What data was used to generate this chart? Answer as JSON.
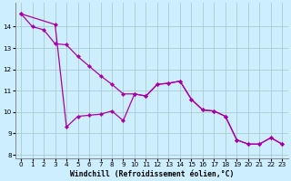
{
  "xlabel": "Windchill (Refroidissement éolien,°C)",
  "background_color": "#cceeff",
  "grid_color": "#aacccc",
  "line_color": "#aa00aa",
  "xlim_min": -0.5,
  "xlim_max": 23.5,
  "ylim_min": 7.85,
  "ylim_max": 15.1,
  "yticks": [
    8,
    9,
    10,
    11,
    12,
    13,
    14
  ],
  "xticks": [
    0,
    1,
    2,
    3,
    4,
    5,
    6,
    7,
    8,
    9,
    10,
    11,
    12,
    13,
    14,
    15,
    16,
    17,
    18,
    19,
    20,
    21,
    22,
    23
  ],
  "line1_x": [
    0,
    1,
    2,
    3,
    4,
    5,
    6,
    7,
    8,
    9,
    10,
    11,
    12,
    13,
    14,
    15,
    16,
    17,
    18,
    19,
    20,
    21,
    22,
    23
  ],
  "line1_y": [
    14.6,
    14.0,
    13.85,
    13.2,
    13.15,
    12.6,
    12.15,
    11.7,
    11.3,
    10.85,
    10.85,
    10.75,
    11.3,
    11.35,
    11.45,
    10.6,
    10.1,
    10.05,
    9.8,
    8.7,
    8.5,
    8.5,
    8.8,
    8.5
  ],
  "line2_x": [
    0,
    3,
    4,
    5,
    6,
    7,
    8,
    9,
    10,
    11,
    12,
    13,
    14,
    15,
    16,
    17,
    18,
    19,
    20,
    21,
    22,
    23
  ],
  "line2_y": [
    14.6,
    14.1,
    9.3,
    9.8,
    9.85,
    9.9,
    10.05,
    9.6,
    10.85,
    10.75,
    11.3,
    11.35,
    11.45,
    10.6,
    10.1,
    10.05,
    9.8,
    8.7,
    8.5,
    8.5,
    8.8,
    8.5
  ],
  "marker_size": 2.2,
  "linewidth": 0.9,
  "label_fontsize": 5.8,
  "tick_fontsize": 5.2
}
